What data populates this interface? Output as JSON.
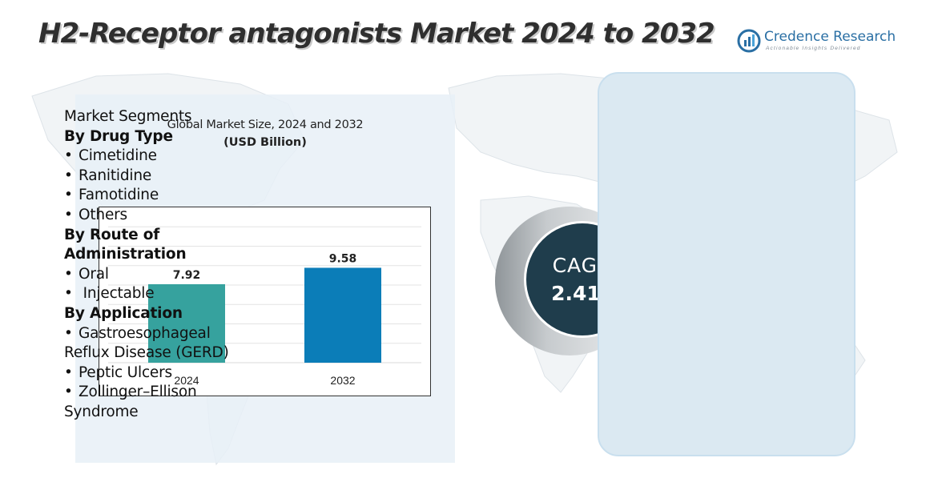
{
  "title": "H2-Receptor antagonists Market 2024 to 2032",
  "brand": {
    "name": "Credence Research",
    "tagline": "Actionable Insights Delivered"
  },
  "chart_data": {
    "type": "bar",
    "title": "Global Market Size, 2024 and 2032",
    "unit": "(USD Billion)",
    "categories": [
      "2024",
      "2032"
    ],
    "values": [
      7.92,
      9.58
    ],
    "value_labels": [
      "7.92",
      "9.58"
    ],
    "colors": [
      "#36a29e",
      "#0b7db8"
    ],
    "grid": true,
    "legend": "none"
  },
  "cagr": {
    "label": "CAGR",
    "value": "2.41",
    "unit": "%"
  },
  "segments": {
    "heading": "Market Segments",
    "groups": [
      {
        "title": "By Drug Type",
        "items": [
          "Cimetidine",
          "Ranitidine",
          "Famotidine",
          "Others"
        ]
      },
      {
        "title_lines": [
          "By Route of",
          "Administration"
        ],
        "items": [
          "Oral",
          " Injectable"
        ]
      },
      {
        "title": "By Application",
        "items": [
          "Gastroesophageal",
          "Peptic Ulcers",
          "Zollinger–Ellison"
        ],
        "continuations": [
          "Reflux Disease (GERD)",
          "Syndrome"
        ]
      }
    ]
  }
}
